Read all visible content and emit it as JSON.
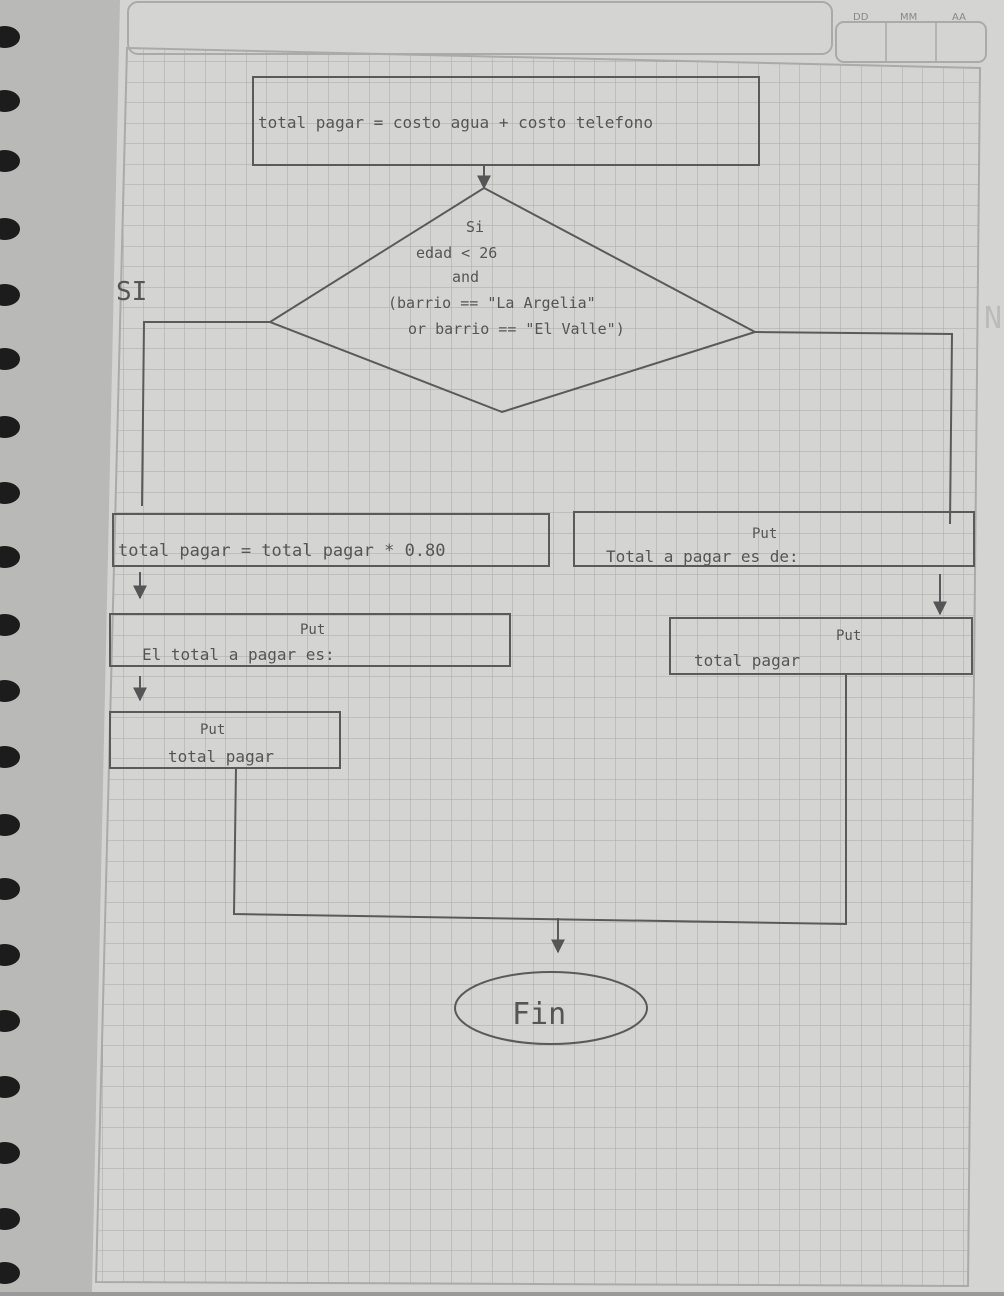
{
  "header": {
    "date_labels": [
      "DD",
      "MM",
      "AA"
    ]
  },
  "diagram": {
    "process_top": "total pagar = costo agua + costo telefono",
    "decision": {
      "lines": [
        "Si",
        "edad < 26",
        "and",
        "(barrio == \"La Argelia\"",
        "or barrio == \"El Valle\")"
      ],
      "yes_label": "SI",
      "no_label": "N"
    },
    "left_branch": {
      "assign": "total pagar = total pagar * 0.80",
      "put1_kw": "Put",
      "put1_text": "El total a pagar es:",
      "put2_kw": "Put",
      "put2_text": "total pagar"
    },
    "right_branch": {
      "put1_kw": "Put",
      "put1_text": "Total a pagar es de:",
      "put2_kw": "Put",
      "put2_text": "total pagar"
    },
    "terminal": "Fin"
  },
  "colors": {
    "paper": "#d3d3d1",
    "grid": "#a9aaa9",
    "ink": "#5a5a5a"
  }
}
